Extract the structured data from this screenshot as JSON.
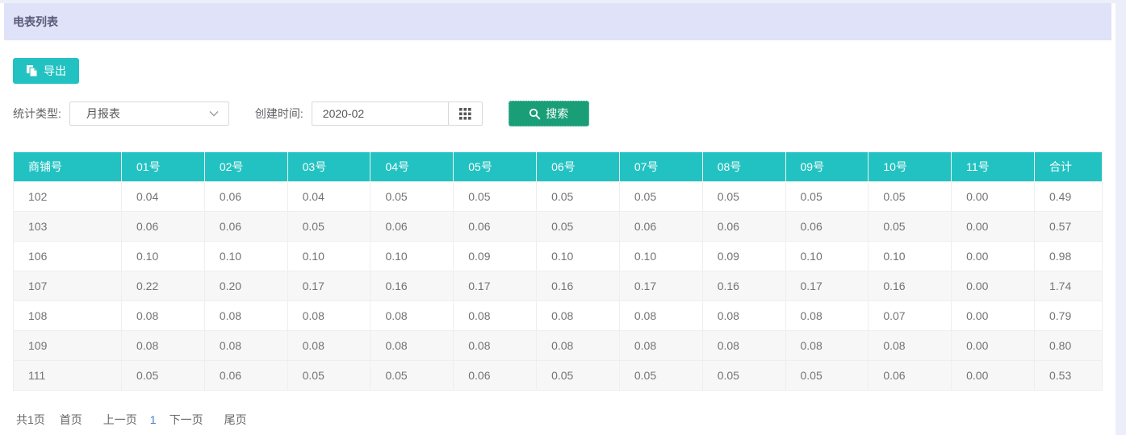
{
  "page": {
    "title": "电表列表"
  },
  "toolbar": {
    "export_label": "导出"
  },
  "filters": {
    "type_label": "统计类型:",
    "type_value": "月报表",
    "date_label": "创建时间:",
    "date_value": "2020-02",
    "search_label": "搜索"
  },
  "table": {
    "columns": [
      "商铺号",
      "01号",
      "02号",
      "03号",
      "04号",
      "05号",
      "06号",
      "07号",
      "08号",
      "09号",
      "10号",
      "11号",
      "合计"
    ],
    "rows": [
      [
        "102",
        "0.04",
        "0.06",
        "0.04",
        "0.05",
        "0.05",
        "0.05",
        "0.05",
        "0.05",
        "0.05",
        "0.05",
        "0.00",
        "0.49"
      ],
      [
        "103",
        "0.06",
        "0.06",
        "0.05",
        "0.06",
        "0.06",
        "0.05",
        "0.06",
        "0.06",
        "0.06",
        "0.05",
        "0.00",
        "0.57"
      ],
      [
        "106",
        "0.10",
        "0.10",
        "0.10",
        "0.10",
        "0.09",
        "0.10",
        "0.10",
        "0.09",
        "0.10",
        "0.10",
        "0.00",
        "0.98"
      ],
      [
        "107",
        "0.22",
        "0.20",
        "0.17",
        "0.16",
        "0.17",
        "0.16",
        "0.17",
        "0.16",
        "0.17",
        "0.16",
        "0.00",
        "1.74"
      ],
      [
        "108",
        "0.08",
        "0.08",
        "0.08",
        "0.08",
        "0.08",
        "0.08",
        "0.08",
        "0.08",
        "0.08",
        "0.07",
        "0.00",
        "0.79"
      ],
      [
        "109",
        "0.08",
        "0.08",
        "0.08",
        "0.08",
        "0.08",
        "0.08",
        "0.08",
        "0.08",
        "0.08",
        "0.08",
        "0.00",
        "0.80"
      ],
      [
        "111",
        "0.05",
        "0.06",
        "0.05",
        "0.05",
        "0.06",
        "0.05",
        "0.05",
        "0.05",
        "0.05",
        "0.06",
        "0.00",
        "0.53"
      ]
    ]
  },
  "pagination": {
    "total": "共1页",
    "first": "首页",
    "prev": "上一页",
    "current": "1",
    "next": "下一页",
    "last": "尾页"
  },
  "colors": {
    "teal": "#23c2c2",
    "green": "#1a9e77",
    "titlebar_bg": "#dfe2f8",
    "page_bg": "#eceef9",
    "stripe": "#f7f7f7",
    "current_page": "#3d7fd9"
  }
}
